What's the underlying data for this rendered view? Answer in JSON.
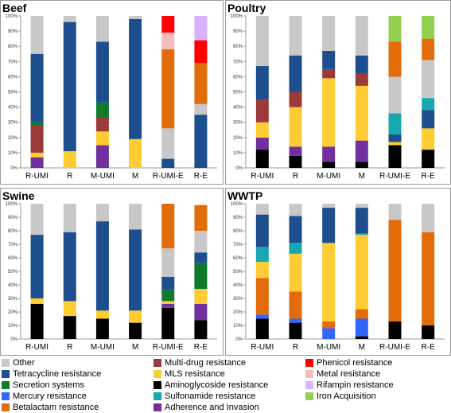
{
  "legend": [
    {
      "name": "Other",
      "color": "#c8c8c8"
    },
    {
      "name": "Multi-drug resistance",
      "color": "#9c3a3a"
    },
    {
      "name": "Phenicol resistance",
      "color": "#ff0000"
    },
    {
      "name": "Tetracycline resistance",
      "color": "#1d4f8e"
    },
    {
      "name": "MLS resistance",
      "color": "#ffcc33"
    },
    {
      "name": "Metal resistance",
      "color": "#f2bcbc"
    },
    {
      "name": "Secretion systems",
      "color": "#0f7a2c"
    },
    {
      "name": "Aminoglycoside resistance",
      "color": "#000000"
    },
    {
      "name": "Rifampin resistance",
      "color": "#d9b3ff"
    },
    {
      "name": "Mercury resistance",
      "color": "#3366ff"
    },
    {
      "name": "Sulfonamide resistance",
      "color": "#1aa8b0"
    },
    {
      "name": "Iron Acquisition",
      "color": "#92d050"
    },
    {
      "name": "Betalactam resistance",
      "color": "#e36c0a"
    },
    {
      "name": "Adherence and Invasion",
      "color": "#7030a0"
    }
  ],
  "chart_data": [
    {
      "type": "bar",
      "stacked": true,
      "title": "Beef",
      "categories": [
        "R-UMI",
        "R",
        "M-UMI",
        "M",
        "R-UMI-E",
        "R-E"
      ],
      "yticks": [
        "0%",
        "10%",
        "20%",
        "30%",
        "40%",
        "50%",
        "60%",
        "70%",
        "80%",
        "90%",
        "100%"
      ],
      "ylim": [
        0,
        100
      ],
      "series": [
        {
          "name": "Aminoglycoside resistance",
          "values": [
            0,
            0,
            0,
            0,
            0,
            0
          ]
        },
        {
          "name": "Adherence and Invasion",
          "values": [
            7,
            0,
            15,
            0,
            0,
            0
          ]
        },
        {
          "name": "Mercury resistance",
          "values": [
            0,
            0,
            0,
            0,
            0,
            0
          ]
        },
        {
          "name": "MLS resistance",
          "values": [
            3,
            11,
            9,
            19,
            0,
            0
          ]
        },
        {
          "name": "Multi-drug resistance",
          "values": [
            18,
            0,
            9,
            0,
            0,
            0
          ]
        },
        {
          "name": "Secretion systems",
          "values": [
            2,
            0,
            10,
            0,
            0,
            0
          ]
        },
        {
          "name": "Tetracycline resistance",
          "values": [
            45,
            85,
            40,
            79,
            6,
            35
          ]
        },
        {
          "name": "Sulfonamide resistance",
          "values": [
            0,
            0,
            0,
            0,
            0,
            0
          ]
        },
        {
          "name": "Other",
          "values": [
            25,
            4,
            17,
            2,
            20,
            7
          ]
        },
        {
          "name": "Betalactam resistance",
          "values": [
            0,
            0,
            0,
            0,
            52,
            27
          ]
        },
        {
          "name": "Metal resistance",
          "values": [
            0,
            0,
            0,
            0,
            11,
            0
          ]
        },
        {
          "name": "Iron Acquisition",
          "values": [
            0,
            0,
            0,
            0,
            0,
            0
          ]
        },
        {
          "name": "Phenicol resistance",
          "values": [
            0,
            0,
            0,
            0,
            11,
            15
          ]
        },
        {
          "name": "Rifampin resistance",
          "values": [
            0,
            0,
            0,
            0,
            0,
            16
          ]
        }
      ]
    },
    {
      "type": "bar",
      "stacked": true,
      "title": "Poultry",
      "categories": [
        "R-UMI",
        "R",
        "M-UMI",
        "M",
        "R-UMI-E",
        "R-E"
      ],
      "yticks": [
        "0%",
        "10%",
        "20%",
        "30%",
        "40%",
        "50%",
        "60%",
        "70%",
        "80%",
        "90%",
        "100%"
      ],
      "ylim": [
        0,
        100
      ],
      "series": [
        {
          "name": "Aminoglycoside resistance",
          "values": [
            12,
            8,
            4,
            4,
            15,
            12
          ]
        },
        {
          "name": "Adherence and Invasion",
          "values": [
            8,
            6,
            10,
            14,
            0,
            0
          ]
        },
        {
          "name": "Mercury resistance",
          "values": [
            0,
            0,
            0,
            0,
            0,
            0
          ]
        },
        {
          "name": "MLS resistance",
          "values": [
            10,
            26,
            45,
            36,
            2,
            14
          ]
        },
        {
          "name": "Multi-drug resistance",
          "values": [
            15,
            10,
            6,
            8,
            0,
            0
          ]
        },
        {
          "name": "Secretion systems",
          "values": [
            0,
            0,
            0,
            0,
            0,
            0
          ]
        },
        {
          "name": "Tetracycline resistance",
          "values": [
            22,
            24,
            12,
            12,
            5,
            12
          ]
        },
        {
          "name": "Sulfonamide resistance",
          "values": [
            0,
            0,
            0,
            0,
            14,
            8
          ]
        },
        {
          "name": "Other",
          "values": [
            33,
            26,
            23,
            26,
            24,
            25
          ]
        },
        {
          "name": "Betalactam resistance",
          "values": [
            0,
            0,
            0,
            0,
            23,
            14
          ]
        },
        {
          "name": "Metal resistance",
          "values": [
            0,
            0,
            0,
            0,
            0,
            0
          ]
        },
        {
          "name": "Iron Acquisition",
          "values": [
            0,
            0,
            0,
            0,
            17,
            15
          ]
        },
        {
          "name": "Phenicol resistance",
          "values": [
            0,
            0,
            0,
            0,
            0,
            0
          ]
        },
        {
          "name": "Rifampin resistance",
          "values": [
            0,
            0,
            0,
            0,
            0,
            0
          ]
        }
      ]
    },
    {
      "type": "bar",
      "stacked": true,
      "title": "Swine",
      "categories": [
        "R-UMI",
        "R",
        "M-UMI",
        "M",
        "R-UMI-E",
        "R-E"
      ],
      "yticks": [
        "0%",
        "10%",
        "20%",
        "30%",
        "40%",
        "50%",
        "60%",
        "70%",
        "80%",
        "90%",
        "100%"
      ],
      "ylim": [
        0,
        100
      ],
      "series": [
        {
          "name": "Aminoglycoside resistance",
          "values": [
            26,
            17,
            15,
            12,
            23,
            14
          ]
        },
        {
          "name": "Adherence and Invasion",
          "values": [
            0,
            0,
            0,
            0,
            3,
            12
          ]
        },
        {
          "name": "Mercury resistance",
          "values": [
            0,
            0,
            0,
            0,
            0,
            0
          ]
        },
        {
          "name": "MLS resistance",
          "values": [
            4,
            11,
            6,
            9,
            2,
            11
          ]
        },
        {
          "name": "Multi-drug resistance",
          "values": [
            0,
            0,
            0,
            0,
            0,
            0
          ]
        },
        {
          "name": "Secretion systems",
          "values": [
            0,
            0,
            0,
            0,
            8,
            19
          ]
        },
        {
          "name": "Tetracycline resistance",
          "values": [
            47,
            51,
            66,
            60,
            10,
            8
          ]
        },
        {
          "name": "Sulfonamide resistance",
          "values": [
            0,
            0,
            0,
            0,
            0,
            0
          ]
        },
        {
          "name": "Other",
          "values": [
            23,
            21,
            13,
            19,
            21,
            16
          ]
        },
        {
          "name": "Betalactam resistance",
          "values": [
            0,
            0,
            0,
            0,
            33,
            19
          ]
        },
        {
          "name": "Metal resistance",
          "values": [
            0,
            0,
            0,
            0,
            0,
            0
          ]
        },
        {
          "name": "Iron Acquisition",
          "values": [
            0,
            0,
            0,
            0,
            0,
            0
          ]
        },
        {
          "name": "Phenicol resistance",
          "values": [
            0,
            0,
            0,
            0,
            0,
            0
          ]
        },
        {
          "name": "Rifampin resistance",
          "values": [
            0,
            0,
            0,
            0,
            0,
            0
          ]
        }
      ]
    },
    {
      "type": "bar",
      "stacked": true,
      "title": "WWTP",
      "categories": [
        "R-UMI",
        "R",
        "M-UMI",
        "M",
        "R-UMI-E",
        "R-E"
      ],
      "yticks": [
        "0%",
        "10%",
        "20%",
        "30%",
        "40%",
        "50%",
        "60%",
        "70%",
        "80%",
        "90%",
        "100%"
      ],
      "ylim": [
        0,
        100
      ],
      "series": [
        {
          "name": "Aminoglycoside resistance",
          "values": [
            15,
            12,
            0,
            2,
            13,
            10
          ]
        },
        {
          "name": "Adherence and Invasion",
          "values": [
            0,
            0,
            0,
            0,
            0,
            0
          ]
        },
        {
          "name": "Mercury resistance",
          "values": [
            3,
            3,
            8,
            13,
            0,
            0
          ]
        },
        {
          "name": "Betalactam resistance",
          "values": [
            27,
            20,
            5,
            7,
            75,
            69
          ]
        },
        {
          "name": "MLS resistance",
          "values": [
            12,
            28,
            58,
            55,
            0,
            0
          ]
        },
        {
          "name": "Multi-drug resistance",
          "values": [
            0,
            0,
            0,
            0,
            0,
            0
          ]
        },
        {
          "name": "Secretion systems",
          "values": [
            0,
            0,
            0,
            0,
            0,
            0
          ]
        },
        {
          "name": "Sulfonamide resistance",
          "values": [
            11,
            8,
            0,
            1,
            0,
            0
          ]
        },
        {
          "name": "Tetracycline resistance",
          "values": [
            24,
            20,
            26,
            19,
            0,
            0
          ]
        },
        {
          "name": "Other",
          "values": [
            8,
            9,
            3,
            3,
            12,
            21
          ]
        },
        {
          "name": "Metal resistance",
          "values": [
            0,
            0,
            0,
            0,
            0,
            0
          ]
        },
        {
          "name": "Iron Acquisition",
          "values": [
            0,
            0,
            0,
            0,
            0,
            0
          ]
        },
        {
          "name": "Phenicol resistance",
          "values": [
            0,
            0,
            0,
            0,
            0,
            0
          ]
        },
        {
          "name": "Rifampin resistance",
          "values": [
            0,
            0,
            0,
            0,
            0,
            0
          ]
        }
      ]
    }
  ]
}
